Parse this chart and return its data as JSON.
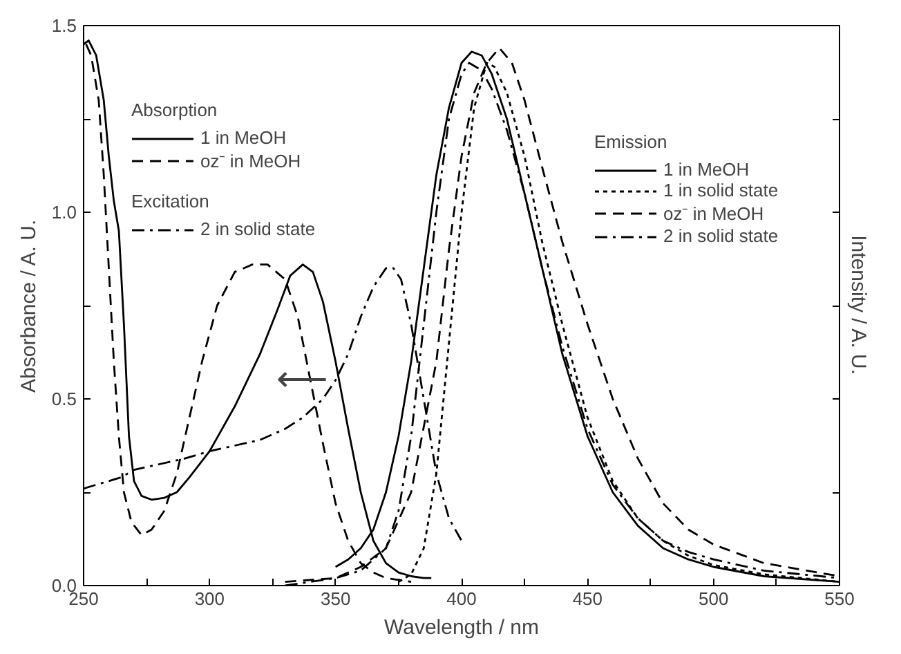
{
  "chart_data": {
    "type": "line",
    "xlabel": "Wavelength / nm",
    "ylabel": "Absorbance / A. U.",
    "y2label": "Intensity / A. U.",
    "xlim": [
      250,
      550
    ],
    "ylim": [
      0,
      1.5
    ],
    "xticks": [
      250,
      {
        "value": 275,
        "label": null
      },
      300,
      {
        "value": 325,
        "label": null
      },
      350,
      {
        "value": 375,
        "label": null
      },
      400,
      {
        "value": 425,
        "label": null
      },
      450,
      {
        "value": 475,
        "label": null
      },
      500,
      {
        "value": 525,
        "label": null
      },
      550
    ],
    "yticks": [
      {
        "value": 0,
        "label": "0.0"
      },
      {
        "value": 0.25,
        "label": null
      },
      {
        "value": 0.5,
        "label": "0.5"
      },
      {
        "value": 0.75,
        "label": null
      },
      {
        "value": 1.0,
        "label": "1.0"
      },
      {
        "value": 1.25,
        "label": null
      },
      {
        "value": 1.5,
        "label": "1.5"
      }
    ],
    "legend": "top left",
    "grid": false,
    "marker": "none",
    "annotations": [
      "Absorption",
      "Excitation",
      "Emission",
      "⟵"
    ],
    "series": [
      {
        "name": "1 in MeOH",
        "color": "#000000",
        "line_style": "solid",
        "x": [
          250,
          252,
          255,
          258,
          260,
          262,
          264,
          266,
          268,
          270,
          273,
          277,
          282,
          287,
          292,
          300,
          310,
          320,
          327,
          332,
          337,
          341,
          345,
          350,
          355,
          360,
          365,
          370,
          375,
          380,
          385,
          388
        ],
        "values": [
          1.45,
          1.46,
          1.42,
          1.3,
          1.15,
          1.03,
          0.95,
          0.7,
          0.4,
          0.28,
          0.24,
          0.23,
          0.235,
          0.25,
          0.29,
          0.36,
          0.48,
          0.62,
          0.74,
          0.83,
          0.86,
          0.84,
          0.76,
          0.6,
          0.42,
          0.25,
          0.12,
          0.06,
          0.035,
          0.025,
          0.02,
          0.02
        ]
      },
      {
        "name": "oz⁻ in MeOH",
        "color": "#000000",
        "line_style": "dashed",
        "x": [
          251,
          253,
          256,
          258,
          260,
          262,
          264,
          266,
          269,
          273,
          277,
          282,
          287,
          292,
          297,
          303,
          310,
          317,
          323,
          330,
          335,
          340,
          345,
          350,
          355,
          360,
          365,
          370,
          375,
          380
        ],
        "values": [
          1.45,
          1.42,
          1.3,
          1.1,
          0.85,
          0.6,
          0.4,
          0.25,
          0.17,
          0.135,
          0.15,
          0.2,
          0.3,
          0.45,
          0.6,
          0.75,
          0.84,
          0.86,
          0.86,
          0.82,
          0.72,
          0.55,
          0.38,
          0.22,
          0.12,
          0.06,
          0.035,
          0.02,
          0.015,
          0.01
        ]
      },
      {
        "name": "2 in solid state",
        "color": "#000000",
        "line_style": "dashdot",
        "x": [
          250,
          255,
          260,
          265,
          270,
          280,
          290,
          300,
          310,
          320,
          330,
          337,
          345,
          350,
          355,
          360,
          365,
          370,
          373,
          376,
          380,
          385,
          390,
          395,
          400
        ],
        "values": [
          0.26,
          0.27,
          0.28,
          0.29,
          0.31,
          0.325,
          0.34,
          0.36,
          0.375,
          0.39,
          0.42,
          0.45,
          0.5,
          0.55,
          0.62,
          0.72,
          0.8,
          0.85,
          0.85,
          0.82,
          0.7,
          0.5,
          0.3,
          0.18,
          0.12
        ]
      },
      {
        "name": "1 in MeOH",
        "color": "#000000",
        "line_style": "solid",
        "x": [
          350,
          355,
          360,
          365,
          370,
          375,
          380,
          385,
          390,
          395,
          400,
          404,
          408,
          412,
          418,
          425,
          432,
          440,
          450,
          460,
          470,
          480,
          490,
          500,
          520,
          550
        ],
        "values": [
          0.05,
          0.07,
          0.1,
          0.15,
          0.25,
          0.4,
          0.6,
          0.85,
          1.1,
          1.28,
          1.4,
          1.43,
          1.42,
          1.37,
          1.25,
          1.05,
          0.85,
          0.62,
          0.4,
          0.25,
          0.16,
          0.1,
          0.07,
          0.05,
          0.025,
          0.01
        ]
      },
      {
        "name": "1 in solid state",
        "color": "#000000",
        "line_style": "dotted",
        "x": [
          375,
          380,
          385,
          390,
          395,
          400,
          405,
          410,
          413,
          418,
          425,
          432,
          440,
          450,
          460,
          470,
          480,
          490,
          500,
          520,
          550
        ],
        "values": [
          0.01,
          0.03,
          0.1,
          0.3,
          0.65,
          1.0,
          1.28,
          1.4,
          1.39,
          1.32,
          1.15,
          0.92,
          0.7,
          0.45,
          0.28,
          0.18,
          0.12,
          0.08,
          0.055,
          0.03,
          0.01
        ]
      },
      {
        "name": "oz⁻ in MeOH",
        "color": "#000000",
        "line_style": "dashed",
        "x": [
          330,
          350,
          360,
          370,
          380,
          390,
          395,
          400,
          405,
          410,
          415,
          420,
          425,
          432,
          440,
          450,
          460,
          470,
          480,
          490,
          500,
          520,
          550
        ],
        "values": [
          0.01,
          0.02,
          0.05,
          0.1,
          0.25,
          0.6,
          0.9,
          1.15,
          1.32,
          1.4,
          1.44,
          1.4,
          1.3,
          1.12,
          0.92,
          0.7,
          0.5,
          0.34,
          0.22,
          0.15,
          0.11,
          0.06,
          0.025
        ]
      },
      {
        "name": "2 in solid state",
        "color": "#000000",
        "line_style": "dashdot",
        "x": [
          330,
          350,
          360,
          370,
          375,
          380,
          385,
          390,
          395,
          400,
          403,
          408,
          412,
          418,
          425,
          432,
          440,
          450,
          460,
          470,
          480,
          490,
          500,
          520,
          550
        ],
        "values": [
          0.0,
          0.02,
          0.04,
          0.1,
          0.2,
          0.4,
          0.7,
          1.0,
          1.25,
          1.37,
          1.4,
          1.38,
          1.33,
          1.22,
          1.05,
          0.85,
          0.64,
          0.42,
          0.27,
          0.18,
          0.12,
          0.09,
          0.07,
          0.04,
          0.02
        ]
      }
    ]
  }
}
